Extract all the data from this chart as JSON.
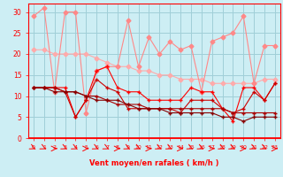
{
  "x": [
    0,
    1,
    2,
    3,
    4,
    5,
    6,
    7,
    8,
    9,
    10,
    11,
    12,
    13,
    14,
    15,
    16,
    17,
    18,
    19,
    20,
    21,
    22,
    23
  ],
  "line_upper_volatile": [
    29,
    31,
    11,
    30,
    30,
    6,
    16,
    17,
    17,
    28,
    17,
    24,
    20,
    23,
    21,
    22,
    11,
    23,
    24,
    25,
    29,
    13,
    22,
    22
  ],
  "line_upper_smooth": [
    21,
    21,
    20,
    20,
    20,
    20,
    19,
    18,
    17,
    17,
    16,
    16,
    15,
    15,
    14,
    14,
    14,
    13,
    13,
    13,
    13,
    13,
    14,
    14
  ],
  "line_mid1": [
    12,
    12,
    12,
    12,
    5,
    9,
    16,
    17,
    12,
    11,
    11,
    9,
    9,
    9,
    9,
    12,
    11,
    11,
    7,
    4,
    12,
    12,
    9,
    13
  ],
  "line_mid2": [
    12,
    12,
    12,
    11,
    5,
    9,
    14,
    12,
    11,
    7,
    7,
    7,
    7,
    7,
    6,
    9,
    9,
    9,
    7,
    6,
    7,
    11,
    9,
    13
  ],
  "line_low1": [
    12,
    12,
    12,
    11,
    11,
    10,
    10,
    9,
    8,
    8,
    8,
    7,
    7,
    7,
    7,
    7,
    7,
    7,
    7,
    6,
    6,
    6,
    6,
    6
  ],
  "line_low2": [
    12,
    12,
    11,
    11,
    11,
    10,
    9,
    9,
    9,
    8,
    7,
    7,
    7,
    6,
    6,
    6,
    6,
    6,
    5,
    5,
    4,
    5,
    5,
    5
  ],
  "bg_color": "#cdeef4",
  "grid_color": "#a0cfd8",
  "c_light_pink": "#ffaaaa",
  "c_pink": "#ff8888",
  "c_red": "#ff0000",
  "c_dark_red": "#cc0000",
  "c_darker_red": "#aa0000",
  "c_darkest_red": "#880000",
  "xlabel": "Vent moyen/en rafales ( km/h )",
  "yticks": [
    0,
    5,
    10,
    15,
    20,
    25,
    30
  ],
  "ylim": [
    0,
    32
  ],
  "xlim": [
    -0.5,
    23.5
  ]
}
